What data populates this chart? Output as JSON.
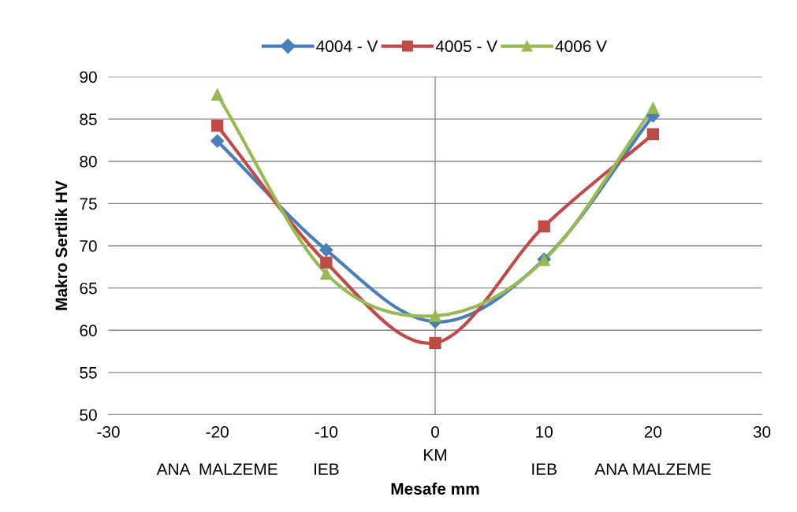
{
  "chart_data": {
    "type": "line",
    "xlabel": "Mesafe mm",
    "ylabel": "Makro Sertlik HV",
    "x": [
      -20,
      -10,
      0,
      10,
      20
    ],
    "series": [
      {
        "name": "4004 - V",
        "color": "#4a7ebb",
        "marker": "diamond",
        "values": [
          82.4,
          69.5,
          61.0,
          68.4,
          85.4
        ]
      },
      {
        "name": "4005 - V",
        "color": "#be4b48",
        "marker": "square",
        "values": [
          84.2,
          68.0,
          58.5,
          72.3,
          83.2
        ]
      },
      {
        "name": "4006 V",
        "color": "#98b954",
        "marker": "triangle",
        "values": [
          87.9,
          66.7,
          61.7,
          68.3,
          86.3
        ]
      }
    ],
    "xlim": [
      -30,
      30
    ],
    "xticks": [
      -30,
      -20,
      -10,
      0,
      10,
      20,
      30
    ],
    "ylim": [
      50,
      90
    ],
    "yticks": [
      50,
      55,
      60,
      65,
      70,
      75,
      80,
      85,
      90
    ],
    "grid": "y",
    "legend": "top",
    "ref_lines": [
      {
        "axis": "x",
        "value": 0,
        "color": "#868686"
      }
    ],
    "annotations": [
      "ANA  MALZEME",
      "IEB",
      "KM",
      "IEB",
      "ANA MALZEME"
    ]
  }
}
